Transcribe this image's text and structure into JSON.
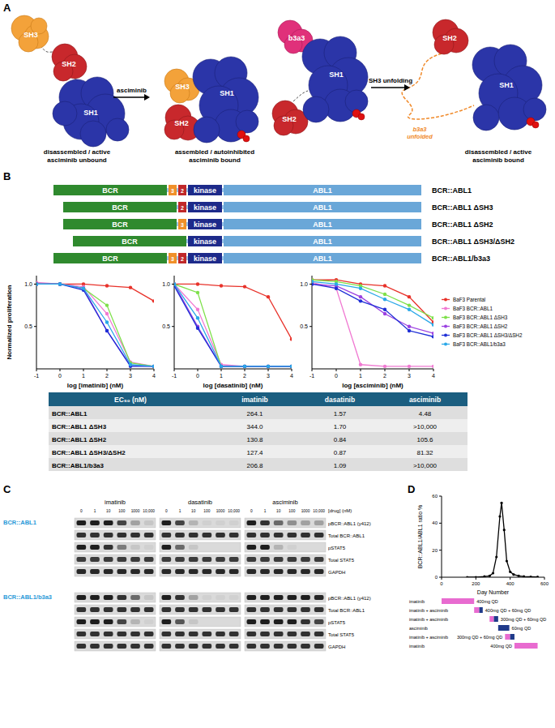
{
  "panel_labels": [
    "A",
    "B",
    "C",
    "D"
  ],
  "diagram": {
    "states": [
      {
        "domains": [
          "SH3",
          "SH2",
          "SH1"
        ],
        "caption": [
          "disassembled / active",
          "asciminib unbound"
        ]
      },
      {
        "domains": [
          "SH3",
          "SH2",
          "SH1"
        ],
        "caption": [
          "assembled / autoinhibited",
          "asciminib bound"
        ]
      },
      {
        "domains": [
          "b3a3",
          "SH2",
          "SH1"
        ]
      },
      {
        "domains": [
          "SH2",
          "SH1"
        ],
        "caption": [
          "disassembled / active",
          "asciminib bound"
        ]
      }
    ],
    "arrows": [
      "asciminib",
      "SH3 unfolding"
    ],
    "unfolded_label": [
      "b3a3",
      "unfolded"
    ]
  },
  "constructs": [
    {
      "name": "BCR::ABL1",
      "domains": [
        "BCR",
        "3",
        "2",
        "kinase",
        "ABL1"
      ]
    },
    {
      "name": "BCR::ABL1 ΔSH3",
      "domains": [
        "BCR",
        "2",
        "kinase",
        "ABL1"
      ]
    },
    {
      "name": "BCR::ABL1 ΔSH2",
      "domains": [
        "BCR",
        "3",
        "kinase",
        "ABL1"
      ]
    },
    {
      "name": "BCR::ABL1 ΔSH3/ΔSH2",
      "domains": [
        "BCR",
        "kinase",
        "ABL1"
      ]
    },
    {
      "name": "BCR::ABL1/b3a3",
      "domains": [
        "BCR",
        "3",
        "2",
        "kinase",
        "ABL1"
      ]
    }
  ],
  "chart_data": [
    {
      "type": "line",
      "xlabel": "log [imatinib] (nM)",
      "ylabel": "Normalized proliferation",
      "x": [
        -1,
        0,
        1,
        2,
        3,
        4
      ],
      "xlim": [
        -1,
        4
      ],
      "ylim": [
        0,
        1.1
      ],
      "xticks": [
        -1,
        0,
        1,
        2,
        3,
        4
      ],
      "yticks": [
        {
          "value": 0.5,
          "label": "0.5"
        },
        {
          "value": 1,
          "label": "1.0"
        }
      ],
      "legend": "none",
      "series": [
        {
          "color": "#e8322a",
          "marker": "circle",
          "values": [
            1.0,
            1.0,
            1.0,
            0.98,
            0.96,
            0.8
          ]
        },
        {
          "color": "#f07ad2",
          "marker": "circle",
          "values": [
            1.02,
            1.0,
            0.97,
            0.65,
            0.08,
            0.03
          ]
        },
        {
          "color": "#7ee04a",
          "marker": "circle",
          "values": [
            1.0,
            1.0,
            0.95,
            0.75,
            0.07,
            0.03
          ]
        },
        {
          "color": "#9b40e0",
          "marker": "circle",
          "values": [
            1.0,
            1.0,
            0.95,
            0.45,
            0.04,
            0.03
          ]
        },
        {
          "color": "#1f2fd6",
          "marker": "circle",
          "values": [
            1.0,
            1.0,
            0.93,
            0.45,
            0.03,
            0.03
          ]
        },
        {
          "color": "#2aa8e8",
          "marker": "circle",
          "values": [
            1.0,
            1.0,
            0.95,
            0.55,
            0.05,
            0.03
          ]
        }
      ]
    },
    {
      "type": "line",
      "xlabel": "log [dasatinib] (nM)",
      "x": [
        -1,
        0,
        1,
        2,
        3,
        4
      ],
      "xlim": [
        -1,
        4
      ],
      "ylim": [
        0,
        1.1
      ],
      "xticks": [
        -1,
        0,
        1,
        2,
        3,
        4
      ],
      "yticks": [
        {
          "value": 0.5,
          "label": "0.5"
        },
        {
          "value": 1,
          "label": "1.0"
        }
      ],
      "legend": "none",
      "series": [
        {
          "color": "#e8322a",
          "marker": "circle",
          "values": [
            1.0,
            1.0,
            0.98,
            0.97,
            0.85,
            0.35
          ]
        },
        {
          "color": "#f07ad2",
          "marker": "circle",
          "values": [
            1.0,
            0.7,
            0.05,
            0.03,
            0.03,
            0.03
          ]
        },
        {
          "color": "#7ee04a",
          "marker": "circle",
          "values": [
            1.0,
            0.9,
            0.03,
            0.03,
            0.03,
            0.03
          ]
        },
        {
          "color": "#9b40e0",
          "marker": "circle",
          "values": [
            1.0,
            0.5,
            0.03,
            0.03,
            0.03,
            0.03
          ]
        },
        {
          "color": "#1f2fd6",
          "marker": "circle",
          "values": [
            0.98,
            0.48,
            0.03,
            0.03,
            0.03,
            0.03
          ]
        },
        {
          "color": "#2aa8e8",
          "marker": "circle",
          "values": [
            1.0,
            0.6,
            0.03,
            0.03,
            0.03,
            0.03
          ]
        }
      ]
    },
    {
      "type": "line",
      "xlabel": "log [asciminib] (nM)",
      "x": [
        -1,
        0,
        1,
        2,
        3,
        4
      ],
      "xlim": [
        -1,
        4
      ],
      "ylim": [
        0,
        1.1
      ],
      "xticks": [
        -1,
        0,
        1,
        2,
        3,
        4
      ],
      "yticks": [
        {
          "value": 0.5,
          "label": "0.5"
        },
        {
          "value": 1,
          "label": "1.0"
        }
      ],
      "legend": "right",
      "series": [
        {
          "name": "BaF3 Parental",
          "color": "#e8322a",
          "marker": "circle",
          "values": [
            1.05,
            1.05,
            1.0,
            0.98,
            0.85,
            0.55
          ]
        },
        {
          "name": "BaF3 BCR::ABL1",
          "color": "#f07ad2",
          "marker": "circle",
          "values": [
            1.02,
            0.95,
            0.05,
            0.03,
            0.03,
            0.03
          ]
        },
        {
          "name": "BaF3 BCR::ABL1 ΔSH3",
          "color": "#7ee04a",
          "marker": "circle",
          "values": [
            1.05,
            1.03,
            0.98,
            0.88,
            0.75,
            0.6
          ]
        },
        {
          "name": "BaF3 BCR::ABL1 ΔSH2",
          "color": "#9b40e0",
          "marker": "circle",
          "values": [
            1.0,
            0.98,
            0.85,
            0.65,
            0.5,
            0.42
          ]
        },
        {
          "name": "BaF3 BCR::ABL1 ΔSH3/ΔSH2",
          "color": "#1f2fd6",
          "marker": "circle",
          "values": [
            1.0,
            0.95,
            0.8,
            0.7,
            0.45,
            0.38
          ]
        },
        {
          "name": "BaF3 BCR::ABL1/b3a3",
          "color": "#2aa8e8",
          "marker": "circle",
          "values": [
            1.03,
            1.0,
            0.95,
            0.82,
            0.7,
            0.52
          ]
        }
      ]
    },
    {
      "type": "line",
      "xlabel": "Day Number",
      "ylabel": "BCR::ABL1/ABL1 ratio %",
      "x": [
        150,
        200,
        250,
        280,
        300,
        320,
        340,
        350,
        365,
        380,
        400,
        420,
        450,
        480,
        520,
        560
      ],
      "xlim": [
        0,
        600
      ],
      "ylim": [
        0,
        60
      ],
      "xticks": [
        0,
        200,
        400,
        600
      ],
      "yticks": [
        0,
        20,
        40,
        60
      ],
      "series": [
        {
          "color": "#000000",
          "marker": "circle",
          "values": [
            0,
            0,
            0.5,
            1,
            3,
            15,
            45,
            55,
            35,
            12,
            4,
            2,
            1,
            0.5,
            0.3,
            0.2
          ]
        }
      ]
    }
  ],
  "ec50_table": {
    "header": [
      "EC₅₀ (nM)",
      "imatinib",
      "dasatinib",
      "asciminib"
    ],
    "rows": [
      [
        "BCR::ABL1",
        "264.1",
        "1.57",
        "4.48"
      ],
      [
        "BCR::ABL1 ΔSH3",
        "344.0",
        "1.70",
        ">10,000"
      ],
      [
        "BCR::ABL1 ΔSH2",
        "130.8",
        "0.84",
        "105.6"
      ],
      [
        "BCR::ABL1 ΔSH3/ΔSH2",
        "127.4",
        "0.87",
        "81.32"
      ],
      [
        "BCR::ABL1/b3a3",
        "206.8",
        "1.09",
        ">10,000"
      ]
    ]
  },
  "blots": {
    "drugs": [
      "imatinib",
      "dasatinib",
      "asciminib"
    ],
    "concentrations": [
      "0",
      "1",
      "10",
      "100",
      "1000",
      "10,000"
    ],
    "concentration_label": "[drug] (nM)",
    "row_labels": [
      "pBCR::ABL1 (y412)",
      "Total BCR::ABL1",
      "pSTAT5",
      "Total STAT5",
      "GAPDH"
    ],
    "blocks": [
      {
        "label": "BCR::ABL1",
        "intensity": [
          [
            [
              1,
              1,
              1,
              0.8,
              0.3,
              0.1
            ],
            [
              1,
              0.8,
              0.2,
              0.05,
              0.05,
              0.05
            ],
            [
              1,
              0.9,
              0.6,
              0.4,
              0.3,
              0.3
            ]
          ],
          [
            [
              0.9,
              0.9,
              0.9,
              0.9,
              0.9,
              0.9
            ],
            [
              0.9,
              0.9,
              0.9,
              0.9,
              0.9,
              0.9
            ],
            [
              0.9,
              0.9,
              0.9,
              0.9,
              0.9,
              0.9
            ]
          ],
          [
            [
              1,
              1,
              0.9,
              0.5,
              0.1,
              0.05
            ],
            [
              1,
              0.6,
              0.1,
              0,
              0,
              0
            ],
            [
              1,
              1,
              0.2,
              0.05,
              0,
              0
            ]
          ],
          [
            [
              0.85,
              0.85,
              0.85,
              0.85,
              0.85,
              0.85
            ],
            [
              0.85,
              0.85,
              0.85,
              0.85,
              0.85,
              0.85
            ],
            [
              0.85,
              0.85,
              0.85,
              0.85,
              0.85,
              0.85
            ]
          ],
          [
            [
              0.95,
              0.95,
              0.95,
              0.95,
              0.95,
              0.95
            ],
            [
              0.95,
              0.95,
              0.95,
              0.95,
              0.95,
              0.95
            ],
            [
              0.95,
              0.95,
              0.95,
              0.95,
              0.95,
              0.95
            ]
          ]
        ]
      },
      {
        "label": "BCR::ABL1/b3a3",
        "intensity": [
          [
            [
              1,
              1,
              1,
              0.9,
              0.6,
              0.1
            ],
            [
              1,
              0.9,
              0.3,
              0.05,
              0.05,
              0.05
            ],
            [
              1,
              1,
              1,
              1,
              1,
              0.95
            ]
          ],
          [
            [
              0.9,
              0.9,
              0.9,
              0.9,
              0.9,
              0.9
            ],
            [
              0.9,
              0.9,
              0.9,
              0.9,
              0.9,
              0.9
            ],
            [
              0.9,
              0.9,
              0.9,
              0.9,
              0.9,
              0.9
            ]
          ],
          [
            [
              1,
              1,
              1,
              0.8,
              0.2,
              0.05
            ],
            [
              1,
              0.7,
              0.1,
              0,
              0,
              0
            ],
            [
              1,
              1,
              1,
              1,
              0.9,
              0.8
            ]
          ],
          [
            [
              0.9,
              0.9,
              0.9,
              0.9,
              0.9,
              0.9
            ],
            [
              0.9,
              0.9,
              0.9,
              0.9,
              0.9,
              0.9
            ],
            [
              0.9,
              0.9,
              0.9,
              0.9,
              0.9,
              0.9
            ]
          ],
          [
            [
              0.9,
              0.9,
              0.9,
              0.9,
              0.9,
              0.9
            ],
            [
              0.9,
              0.9,
              0.9,
              0.9,
              0.9,
              0.9
            ],
            [
              0.9,
              0.9,
              0.9,
              0.9,
              0.9,
              0.9
            ]
          ]
        ]
      }
    ]
  },
  "treatments": {
    "colors": {
      "imatinib": "#e86bd0",
      "asciminib": "#1f3a8a"
    },
    "rows": [
      {
        "label": "imatinib",
        "dose": "400mg QD",
        "segments": [
          {
            "drug": "imatinib",
            "start": 0,
            "end": 190
          }
        ]
      },
      {
        "label": "imatinib + asciminib",
        "dose": "400mg QD + 60mg QD",
        "segments": [
          {
            "drug": "imatinib",
            "start": 190,
            "end": 220
          },
          {
            "drug": "asciminib",
            "start": 220,
            "end": 240
          }
        ]
      },
      {
        "label": "imatinib + asciminib",
        "dose": "300mg QD + 60mg QD",
        "segments": [
          {
            "drug": "imatinib",
            "start": 280,
            "end": 305
          },
          {
            "drug": "asciminib",
            "start": 305,
            "end": 330
          }
        ]
      },
      {
        "label": "asciminib",
        "dose": "60mg QD",
        "segments": [
          {
            "drug": "asciminib",
            "start": 330,
            "end": 395
          }
        ]
      },
      {
        "label": "imatinib + asciminib",
        "dose": "300mg QD + 60mg QD",
        "segments": [
          {
            "drug": "imatinib",
            "start": 370,
            "end": 400
          },
          {
            "drug": "asciminib",
            "start": 400,
            "end": 425
          }
        ]
      },
      {
        "label": "imatinib",
        "dose": "400mg QD",
        "segments": [
          {
            "drug": "imatinib",
            "start": 425,
            "end": 560
          }
        ]
      }
    ]
  }
}
